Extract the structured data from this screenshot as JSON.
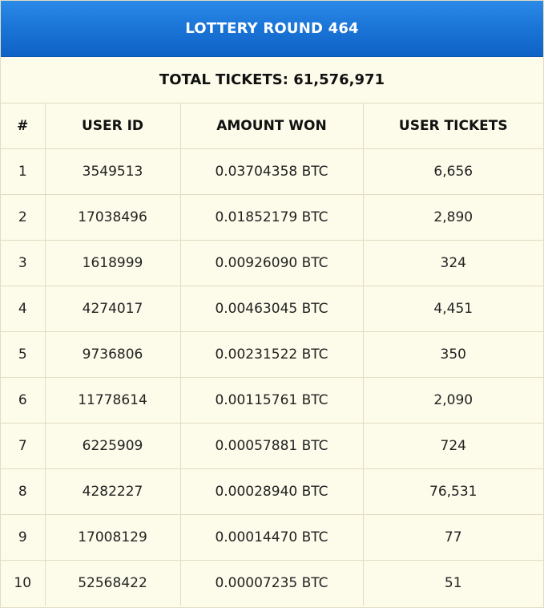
{
  "title": "LOTTERY ROUND 464",
  "total": {
    "label": "TOTAL TICKETS:",
    "value": "61,576,971"
  },
  "table": {
    "headers": [
      "#",
      "USER ID",
      "AMOUNT WON",
      "USER TICKETS"
    ],
    "rows": [
      [
        "1",
        "3549513",
        "0.03704358 BTC",
        "6,656"
      ],
      [
        "2",
        "17038496",
        "0.01852179 BTC",
        "2,890"
      ],
      [
        "3",
        "1618999",
        "0.00926090 BTC",
        "324"
      ],
      [
        "4",
        "4274017",
        "0.00463045 BTC",
        "4,451"
      ],
      [
        "5",
        "9736806",
        "0.00231522 BTC",
        "350"
      ],
      [
        "6",
        "11778614",
        "0.00115761 BTC",
        "2,090"
      ],
      [
        "7",
        "6225909",
        "0.00057881 BTC",
        "724"
      ],
      [
        "8",
        "4282227",
        "0.00028940 BTC",
        "76,531"
      ],
      [
        "9",
        "17008129",
        "0.00014470 BTC",
        "77"
      ],
      [
        "10",
        "52568422",
        "0.00007235 BTC",
        "51"
      ]
    ]
  },
  "colors": {
    "header_blue": "#1a74d6",
    "background": "#fdfbea",
    "border": "#e2dcc2"
  }
}
